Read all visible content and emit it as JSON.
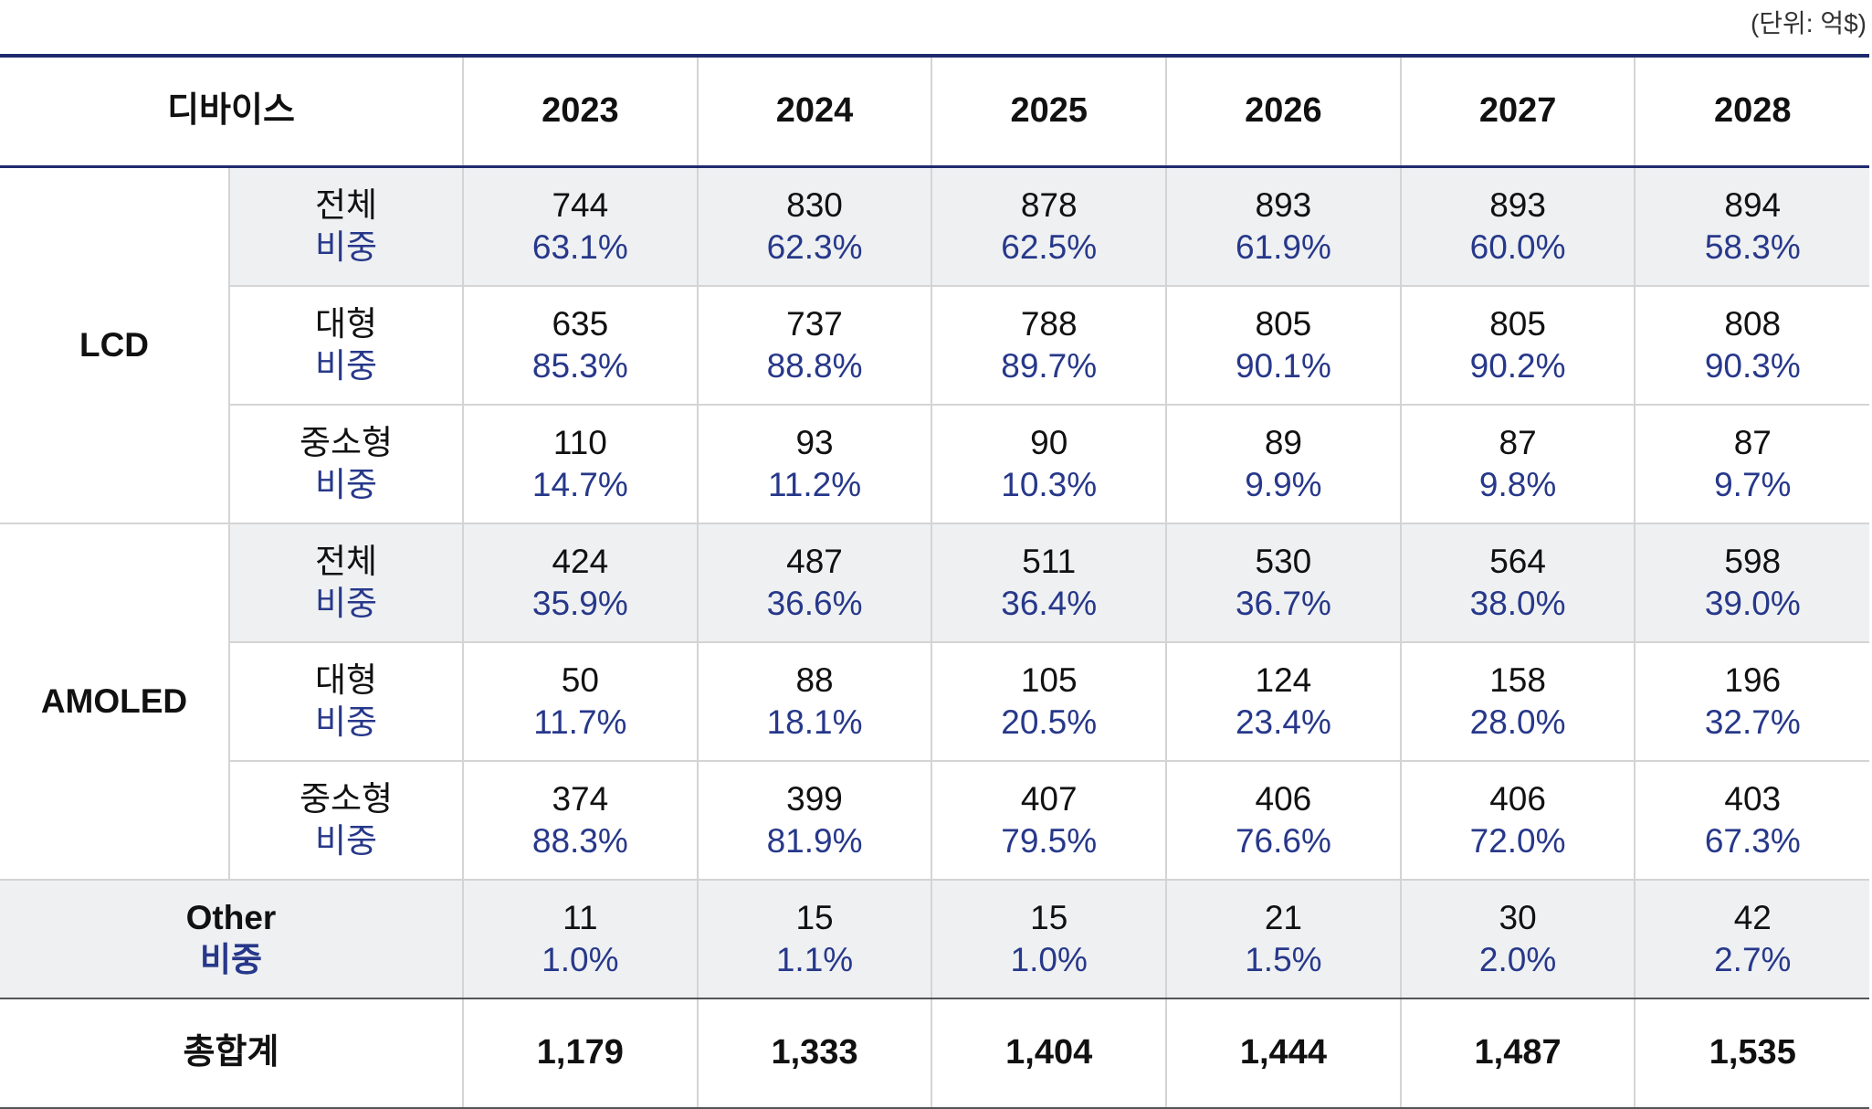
{
  "unit_label": "(단위: 억$)",
  "header": {
    "device_label": "디바이스",
    "years": [
      "2023",
      "2024",
      "2025",
      "2026",
      "2027",
      "2028"
    ]
  },
  "groups": {
    "lcd": {
      "name": "LCD",
      "rows": [
        {
          "label": "전체",
          "ratio_label": "비중",
          "values": [
            "744",
            "830",
            "878",
            "893",
            "893",
            "894"
          ],
          "ratios": [
            "63.1%",
            "62.3%",
            "62.5%",
            "61.9%",
            "60.0%",
            "58.3%"
          ]
        },
        {
          "label": "대형",
          "ratio_label": "비중",
          "values": [
            "635",
            "737",
            "788",
            "805",
            "805",
            "808"
          ],
          "ratios": [
            "85.3%",
            "88.8%",
            "89.7%",
            "90.1%",
            "90.2%",
            "90.3%"
          ]
        },
        {
          "label": "중소형",
          "ratio_label": "비중",
          "values": [
            "110",
            "93",
            "90",
            "89",
            "87",
            "87"
          ],
          "ratios": [
            "14.7%",
            "11.2%",
            "10.3%",
            "9.9%",
            "9.8%",
            "9.7%"
          ]
        }
      ]
    },
    "amoled": {
      "name": "AMOLED",
      "rows": [
        {
          "label": "전체",
          "ratio_label": "비중",
          "values": [
            "424",
            "487",
            "511",
            "530",
            "564",
            "598"
          ],
          "ratios": [
            "35.9%",
            "36.6%",
            "36.4%",
            "36.7%",
            "38.0%",
            "39.0%"
          ]
        },
        {
          "label": "대형",
          "ratio_label": "비중",
          "values": [
            "50",
            "88",
            "105",
            "124",
            "158",
            "196"
          ],
          "ratios": [
            "11.7%",
            "18.1%",
            "20.5%",
            "23.4%",
            "28.0%",
            "32.7%"
          ]
        },
        {
          "label": "중소형",
          "ratio_label": "비중",
          "values": [
            "374",
            "399",
            "407",
            "406",
            "406",
            "403"
          ],
          "ratios": [
            "88.3%",
            "81.9%",
            "79.5%",
            "76.6%",
            "72.0%",
            "67.3%"
          ]
        }
      ]
    }
  },
  "other": {
    "label": "Other",
    "ratio_label": "비중",
    "values": [
      "11",
      "15",
      "15",
      "21",
      "30",
      "42"
    ],
    "ratios": [
      "1.0%",
      "1.1%",
      "1.0%",
      "1.5%",
      "2.0%",
      "2.7%"
    ]
  },
  "total": {
    "label": "총합계",
    "values": [
      "1,179",
      "1,333",
      "1,404",
      "1,444",
      "1,487",
      "1,535"
    ]
  },
  "colors": {
    "header_rule": "#1f2a6e",
    "ratio_text": "#27388a",
    "shade": "#eef0f2"
  }
}
